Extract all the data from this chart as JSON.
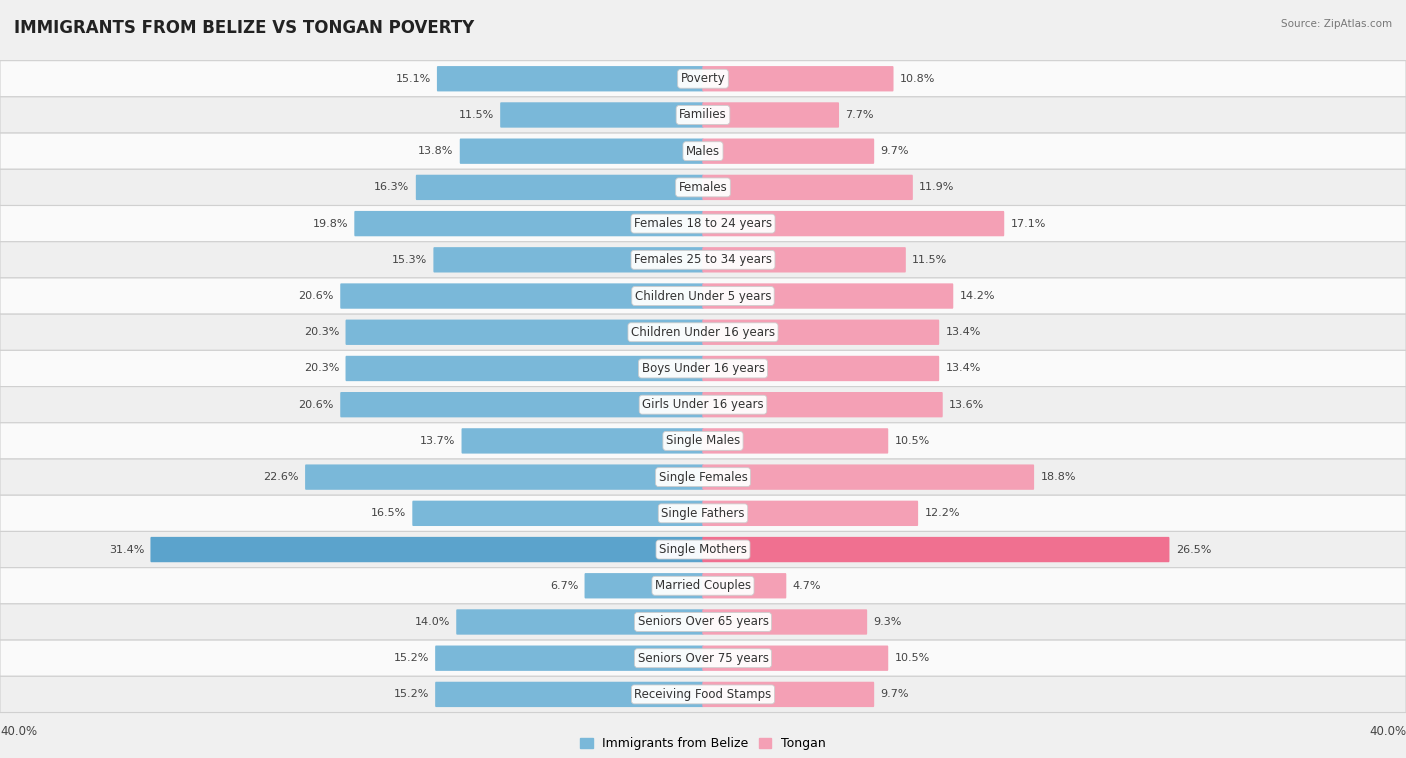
{
  "title": "IMMIGRANTS FROM BELIZE VS TONGAN POVERTY",
  "source": "Source: ZipAtlas.com",
  "categories": [
    "Poverty",
    "Families",
    "Males",
    "Females",
    "Females 18 to 24 years",
    "Females 25 to 34 years",
    "Children Under 5 years",
    "Children Under 16 years",
    "Boys Under 16 years",
    "Girls Under 16 years",
    "Single Males",
    "Single Females",
    "Single Fathers",
    "Single Mothers",
    "Married Couples",
    "Seniors Over 65 years",
    "Seniors Over 75 years",
    "Receiving Food Stamps"
  ],
  "belize_values": [
    15.1,
    11.5,
    13.8,
    16.3,
    19.8,
    15.3,
    20.6,
    20.3,
    20.3,
    20.6,
    13.7,
    22.6,
    16.5,
    31.4,
    6.7,
    14.0,
    15.2,
    15.2
  ],
  "tongan_values": [
    10.8,
    7.7,
    9.7,
    11.9,
    17.1,
    11.5,
    14.2,
    13.4,
    13.4,
    13.6,
    10.5,
    18.8,
    12.2,
    26.5,
    4.7,
    9.3,
    10.5,
    9.7
  ],
  "belize_color": "#7ab8d9",
  "tongan_color": "#f4a0b5",
  "single_mothers_belize_color": "#5ba3cc",
  "single_mothers_tongan_color": "#f07090",
  "axis_max": 40.0,
  "bg_color": "#f0f0f0",
  "row_even_color": "#fafafa",
  "row_odd_color": "#efefef",
  "label_fontsize": 8.5,
  "title_fontsize": 12,
  "value_fontsize": 8,
  "legend_belize": "Immigrants from Belize",
  "legend_tongan": "Tongan"
}
